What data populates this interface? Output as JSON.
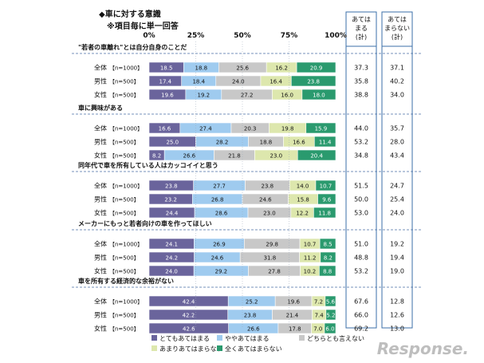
{
  "title": {
    "line1": "◆車に対する意識",
    "line2": "※項目毎に単一回答"
  },
  "col_headers": {
    "agree": [
      "あては",
      "まる",
      "(計)"
    ],
    "disagree": [
      "あては",
      "まらない",
      "(計)"
    ]
  },
  "watermark": "Response.",
  "colors": {
    "s1": "#6a649c",
    "s2": "#9fcbef",
    "s3": "#c8c8c8",
    "s4": "#dde7ad",
    "s5": "#2a9a6e",
    "header_border": "#3b6fa8",
    "divider": "#4a6fa5"
  },
  "chart_data": {
    "type": "bar",
    "orientation": "horizontal",
    "stacked": true,
    "xlim": [
      0,
      100
    ],
    "x_ticks": [
      "0%",
      "25%",
      "50%",
      "75%",
      "100%"
    ],
    "series_names": [
      "とてもあてはまる",
      "ややあてはまる",
      "どちらとも言えない",
      "あまりあてはまらない",
      "全くあてはまらない"
    ],
    "legend_position": "bottom",
    "groups": [
      {
        "question": "\"若者の車離れ\"とは自分自身のことだ",
        "rows": [
          {
            "label": "全体",
            "n": "【n=1000】",
            "values": [
              18.5,
              18.8,
              25.6,
              16.2,
              20.9
            ],
            "agree": "37.3",
            "disagree": "37.1"
          },
          {
            "label": "男性",
            "n": "【n=500】",
            "values": [
              17.4,
              18.4,
              24.0,
              16.4,
              23.8
            ],
            "agree": "35.8",
            "disagree": "40.2"
          },
          {
            "label": "女性",
            "n": "【n=500】",
            "values": [
              19.6,
              19.2,
              27.2,
              16.0,
              18.0
            ],
            "agree": "38.8",
            "disagree": "34.0"
          }
        ]
      },
      {
        "question": "車に興味がある",
        "rows": [
          {
            "label": "全体",
            "n": "【n=1000】",
            "values": [
              16.6,
              27.4,
              20.3,
              19.8,
              15.9
            ],
            "agree": "44.0",
            "disagree": "35.7"
          },
          {
            "label": "男性",
            "n": "【n=500】",
            "values": [
              25.0,
              28.2,
              18.8,
              16.6,
              11.4
            ],
            "agree": "53.2",
            "disagree": "28.0"
          },
          {
            "label": "女性",
            "n": "【n=500】",
            "values": [
              8.2,
              26.6,
              21.8,
              23.0,
              20.4
            ],
            "agree": "34.8",
            "disagree": "43.4"
          }
        ]
      },
      {
        "question": "同年代で車を所有している人はカッコイイと思う",
        "rows": [
          {
            "label": "全体",
            "n": "【n=1000】",
            "values": [
              23.8,
              27.7,
              23.8,
              14.0,
              10.7
            ],
            "agree": "51.5",
            "disagree": "24.7"
          },
          {
            "label": "男性",
            "n": "【n=500】",
            "values": [
              23.2,
              26.8,
              24.6,
              15.8,
              9.6
            ],
            "agree": "50.0",
            "disagree": "25.4"
          },
          {
            "label": "女性",
            "n": "【n=500】",
            "values": [
              24.4,
              28.6,
              23.0,
              12.2,
              11.8
            ],
            "agree": "53.0",
            "disagree": "24.0"
          }
        ]
      },
      {
        "question": "メーカーにもっと若者向けの車を作ってほしい",
        "rows": [
          {
            "label": "全体",
            "n": "【n=1000】",
            "values": [
              24.1,
              26.9,
              29.8,
              10.7,
              8.5
            ],
            "agree": "51.0",
            "disagree": "19.2"
          },
          {
            "label": "男性",
            "n": "【n=500】",
            "values": [
              24.2,
              24.6,
              31.8,
              11.2,
              8.2
            ],
            "agree": "48.8",
            "disagree": "19.4"
          },
          {
            "label": "女性",
            "n": "【n=500】",
            "values": [
              24.0,
              29.2,
              27.8,
              10.2,
              8.8
            ],
            "agree": "53.2",
            "disagree": "19.0"
          }
        ]
      },
      {
        "question": "車を所有する経済的な余裕がない",
        "rows": [
          {
            "label": "全体",
            "n": "【n=1000】",
            "values": [
              42.4,
              25.2,
              19.6,
              7.2,
              5.6
            ],
            "agree": "67.6",
            "disagree": "12.8"
          },
          {
            "label": "男性",
            "n": "【n=500】",
            "values": [
              42.2,
              23.8,
              21.4,
              7.4,
              5.2
            ],
            "agree": "66.0",
            "disagree": "12.6"
          },
          {
            "label": "女性",
            "n": "【n=500】",
            "values": [
              42.6,
              26.6,
              17.8,
              7.0,
              6.0
            ],
            "agree": "69.2",
            "disagree": "13.0"
          }
        ]
      }
    ]
  }
}
